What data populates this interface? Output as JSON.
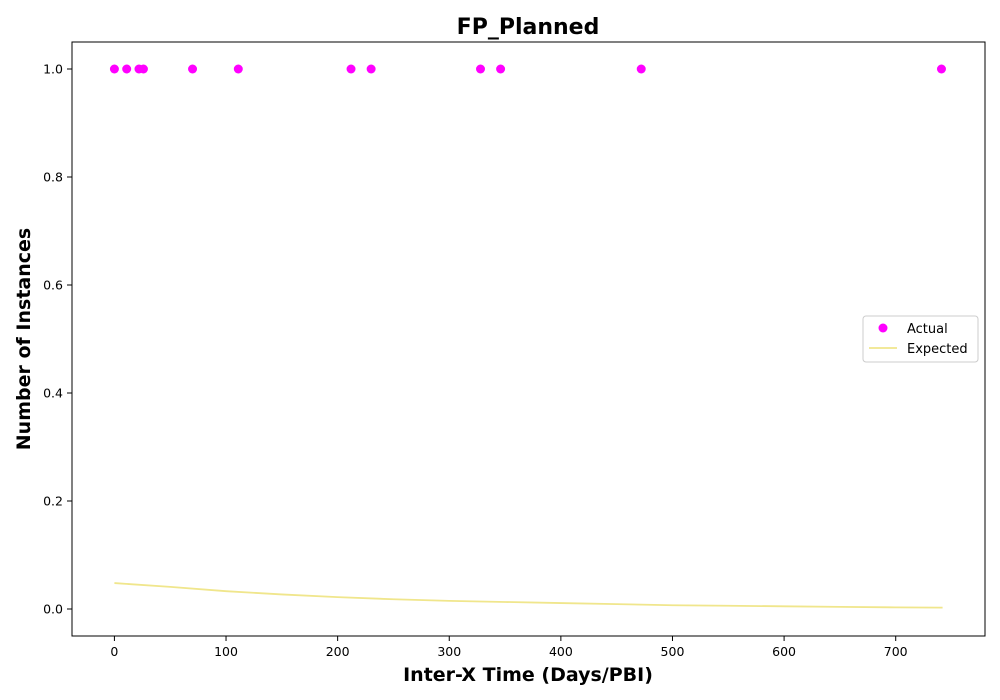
{
  "chart_data": {
    "type": "scatter",
    "title": "FP_Planned",
    "xlabel": "Inter-X Time (Days/PBI)",
    "ylabel": "Number of Instances",
    "xlim": [
      -38,
      780
    ],
    "ylim": [
      -0.05,
      1.05
    ],
    "xticks": [
      0,
      100,
      200,
      300,
      400,
      500,
      600,
      700
    ],
    "yticks": [
      0.0,
      0.2,
      0.4,
      0.6,
      0.8,
      1.0
    ],
    "legend": {
      "position": "right",
      "entries": [
        "Actual",
        "Expected"
      ]
    },
    "series": [
      {
        "name": "Actual",
        "kind": "scatter",
        "color": "#ff00ff",
        "x": [
          0,
          11,
          22,
          26,
          70,
          111,
          212,
          230,
          328,
          346,
          472,
          741
        ],
        "y": [
          1,
          1,
          1,
          1,
          1,
          1,
          1,
          1,
          1,
          1,
          1,
          1
        ]
      },
      {
        "name": "Expected",
        "kind": "line",
        "color": "#f0e68c",
        "x": [
          0,
          50,
          100,
          150,
          200,
          250,
          300,
          350,
          400,
          450,
          500,
          550,
          600,
          650,
          700,
          742
        ],
        "y": [
          0.048,
          0.041,
          0.033,
          0.027,
          0.022,
          0.018,
          0.015,
          0.013,
          0.011,
          0.009,
          0.007,
          0.006,
          0.005,
          0.004,
          0.003,
          0.0025
        ]
      }
    ],
    "grid": false
  }
}
